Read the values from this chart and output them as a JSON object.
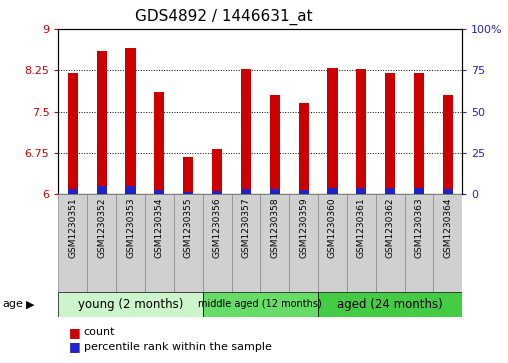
{
  "title": "GDS4892 / 1446631_at",
  "samples": [
    "GSM1230351",
    "GSM1230352",
    "GSM1230353",
    "GSM1230354",
    "GSM1230355",
    "GSM1230356",
    "GSM1230357",
    "GSM1230358",
    "GSM1230359",
    "GSM1230360",
    "GSM1230361",
    "GSM1230362",
    "GSM1230363",
    "GSM1230364"
  ],
  "count_values": [
    8.2,
    8.6,
    8.65,
    7.85,
    6.68,
    6.82,
    8.28,
    7.8,
    7.65,
    8.3,
    8.28,
    8.2,
    8.2,
    7.8
  ],
  "percentile_values": [
    6.09,
    6.14,
    6.14,
    6.08,
    6.04,
    6.06,
    6.09,
    6.1,
    6.08,
    6.12,
    6.12,
    6.12,
    6.12,
    6.09
  ],
  "y_min": 6,
  "y_max": 9,
  "y_ticks": [
    6,
    6.75,
    7.5,
    8.25,
    9
  ],
  "y_tick_labels": [
    "6",
    "6.75",
    "7.5",
    "8.25",
    "9"
  ],
  "y2_ticks": [
    0,
    25,
    50,
    75,
    100
  ],
  "y2_tick_labels": [
    "0",
    "25",
    "50",
    "75",
    "100%"
  ],
  "bar_color": "#cc0000",
  "percentile_color": "#2222cc",
  "groups": [
    {
      "label": "young (2 months)",
      "start": 0,
      "end": 4,
      "color": "#ccf5cc"
    },
    {
      "label": "middle aged (12 months)",
      "start": 5,
      "end": 8,
      "color": "#66dd66"
    },
    {
      "label": "aged (24 months)",
      "start": 9,
      "end": 13,
      "color": "#44cc44"
    }
  ],
  "bar_width": 0.35,
  "sample_box_color": "#d0d0d0",
  "sample_box_edge": "#888888",
  "axis_label_color_left": "#cc0000",
  "axis_label_color_right": "#2222cc"
}
